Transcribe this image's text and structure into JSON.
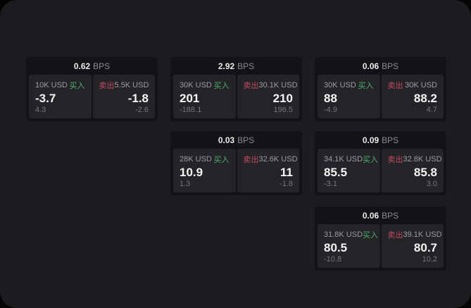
{
  "app": {
    "surface_color": "#1c1c1e",
    "outside_color": "#050505"
  },
  "colors": {
    "buy_green": "#4fae70",
    "sell_red": "#c14a64",
    "card_bg": "#131315",
    "panel_bg": "#242427",
    "text_primary": "#f5f5f6",
    "text_secondary": "#9c9ca0",
    "text_muted": "#76767a"
  },
  "labels": {
    "bps_unit": "BPS",
    "buy": "买入",
    "sell": "卖出"
  },
  "cards": [
    {
      "grid": {
        "col": 0,
        "row": 0
      },
      "bps": "0.62",
      "buy": {
        "notional": "10K USD",
        "price": "-3.7",
        "delta": "4.3"
      },
      "sell": {
        "notional": "5.5K USD",
        "price": "-1.8",
        "delta": "-2.6"
      }
    },
    {
      "grid": {
        "col": 1,
        "row": 0
      },
      "bps": "2.92",
      "buy": {
        "notional": "30K USD",
        "price": "201",
        "delta": "-188.1"
      },
      "sell": {
        "notional": "30.1K USD",
        "price": "210",
        "delta": "196.5"
      }
    },
    {
      "grid": {
        "col": 2,
        "row": 0
      },
      "bps": "0.06",
      "buy": {
        "notional": "30K USD",
        "price": "88",
        "delta": "-4.9"
      },
      "sell": {
        "notional": "30K USD",
        "price": "88.2",
        "delta": "4.7"
      }
    },
    {
      "grid": {
        "col": 1,
        "row": 1
      },
      "bps": "0.03",
      "buy": {
        "notional": "28K USD",
        "price": "10.9",
        "delta": "1.3"
      },
      "sell": {
        "notional": "32.6K USD",
        "price": "11",
        "delta": "-1.8"
      }
    },
    {
      "grid": {
        "col": 2,
        "row": 1
      },
      "bps": "0.09",
      "buy": {
        "notional": "34.1K USD",
        "price": "85.5",
        "delta": "-3.1"
      },
      "sell": {
        "notional": "32.8K USD",
        "price": "85.8",
        "delta": "3.0"
      }
    },
    {
      "grid": {
        "col": 2,
        "row": 2
      },
      "bps": "0.06",
      "buy": {
        "notional": "31.8K USD",
        "price": "80.5",
        "delta": "-10.8"
      },
      "sell": {
        "notional": "39.1K USD",
        "price": "80.7",
        "delta": "10.2"
      }
    }
  ]
}
